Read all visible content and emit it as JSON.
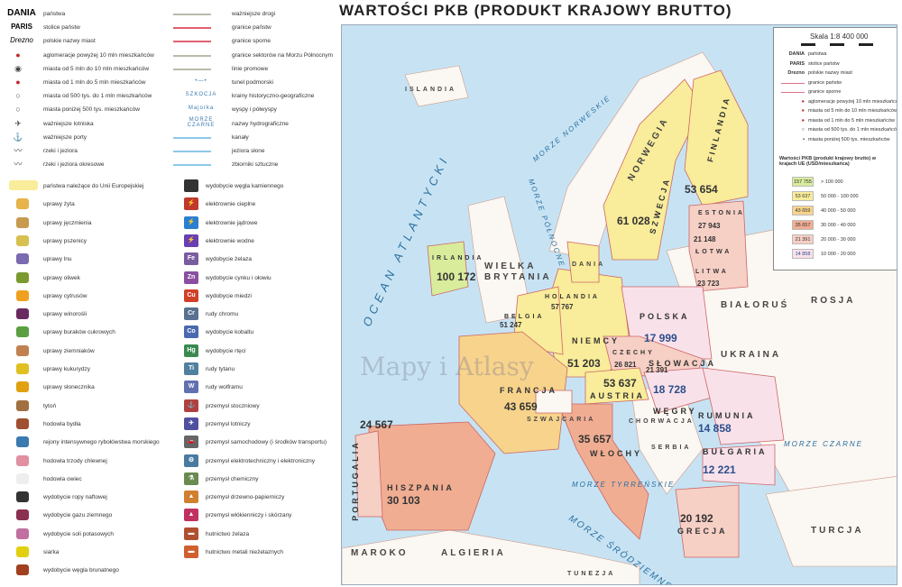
{
  "legend_top_left": [
    {
      "sym": "DANIA",
      "label": "państwa"
    },
    {
      "sym": "PARIS",
      "label": "stolice państw"
    },
    {
      "sym": "Drezno",
      "label": "polskie nazwy miast"
    },
    {
      "sym": "●",
      "label": "aglomeracje powyżej 10 mln mieszkańców"
    },
    {
      "sym": "◉",
      "label": "miasta od 5 mln do 10 mln mieszkańców"
    },
    {
      "sym": "●",
      "label": "miasta od 1 mln do 5 mln mieszkańców"
    },
    {
      "sym": "○",
      "label": "miasta od 500 tys. do 1 mln mieszkańców"
    },
    {
      "sym": "○",
      "label": "miasta poniżej 500 tys. mieszkańców"
    },
    {
      "sym": "✈",
      "label": "ważniejsze lotniska"
    },
    {
      "sym": "⚓",
      "label": "ważniejsze porty"
    },
    {
      "sym": "〰",
      "label": "rzeki i jeziora"
    },
    {
      "sym": "〰",
      "label": "rzeki i jeziora okresowe"
    }
  ],
  "legend_top_right": [
    {
      "sym": "",
      "label": "ważniejsze drogi"
    },
    {
      "sym": "",
      "label": "granice państw"
    },
    {
      "sym": "",
      "label": "granice sporne"
    },
    {
      "sym": "",
      "label": "granice sektorów na Morzu Północnym"
    },
    {
      "sym": "",
      "label": "linie promowe"
    },
    {
      "sym": "•—•",
      "label": "tunel podmorski"
    },
    {
      "sym": "SZKOCJA",
      "label": "krainy historyczno-geograficzne"
    },
    {
      "sym": "Majorka",
      "label": "wyspy i półwyspy"
    },
    {
      "sym": "MORZE CZARNE",
      "label": "nazwy hydrograficzne"
    },
    {
      "sym": "",
      "label": "kanały"
    },
    {
      "sym": "",
      "label": "jeziora słone"
    },
    {
      "sym": "",
      "label": "zbiorniki sztuczne"
    }
  ],
  "legend_econ_left": [
    "państwa należące do Unii Europejskiej",
    "uprawy żyta",
    "uprawy jęczmienia",
    "uprawy pszenicy",
    "uprawy lnu",
    "uprawy oliwek",
    "uprawy cytrusów",
    "uprawy winorośli",
    "uprawy buraków cukrowych",
    "uprawy ziemniaków",
    "uprawy kukurydzy",
    "uprawy słonecznika",
    "tytoń",
    "hodowla bydła",
    "rejony intensywnego rybołówstwa morskiego",
    "hodowla trzody chlewnej",
    "hodowla owiec",
    "wydobycie ropy naftowej",
    "wydobycie gazu ziemnego",
    "wydobycie soli potasowych",
    "siarka",
    "wydobycie węgla brunatnego"
  ],
  "legend_econ_right": [
    {
      "code": "",
      "color": "#333",
      "label": "wydobycie węgla kamiennego"
    },
    {
      "code": "⚡",
      "color": "#c0392b",
      "label": "elektrownie cieplne"
    },
    {
      "code": "⚡",
      "color": "#2a7fd0",
      "label": "elektrownie jądrowe"
    },
    {
      "code": "⚡",
      "color": "#6a3fb0",
      "label": "elektrownie wodne"
    },
    {
      "code": "Fe",
      "color": "#7a5ca0",
      "label": "wydobycie żelaza"
    },
    {
      "code": "Zn Pb",
      "color": "#8a4fa0",
      "label": "wydobycie cynku i ołowiu"
    },
    {
      "code": "Cu",
      "color": "#d0402a",
      "label": "wydobycie miedzi"
    },
    {
      "code": "Cr",
      "color": "#5a7090",
      "label": "rudy chromu"
    },
    {
      "code": "Co",
      "color": "#4a6ab0",
      "label": "wydobycie kobaltu"
    },
    {
      "code": "Hg",
      "color": "#3a8a50",
      "label": "wydobycie rtęci"
    },
    {
      "code": "Ti",
      "color": "#5080a0",
      "label": "rudy tytanu"
    },
    {
      "code": "W",
      "color": "#6070b0",
      "label": "rudy wolframu"
    },
    {
      "code": "⚓",
      "color": "#b04040",
      "label": "przemysł stoczniowy"
    },
    {
      "code": "✈",
      "color": "#5050a0",
      "label": "przemysł lotniczy"
    },
    {
      "code": "🚗",
      "color": "#666",
      "label": "przemysł samochodowy (i środków transportu)"
    },
    {
      "code": "⚙",
      "color": "#4a7aa0",
      "label": "przemysł elektrotechniczny i elektroniczny"
    },
    {
      "code": "⚗",
      "color": "#6a8a50",
      "label": "przemysł chemiczny"
    },
    {
      "code": "▲",
      "color": "#d08030",
      "label": "przemysł drzewno-papierniczy"
    },
    {
      "code": "▲",
      "color": "#c03060",
      "label": "przemysł włókienniczy i skórzany"
    },
    {
      "code": "▬",
      "color": "#b05030",
      "label": "hutnictwo żelaza"
    },
    {
      "code": "▬",
      "color": "#d06030",
      "label": "hutnictwo metali nieżelaznych"
    }
  ],
  "map": {
    "title": "WARTOŚCI PKB (PRODUKT KRAJOWY BRUTTO)",
    "watermark": "Mapy i Atlasy",
    "scale": "Skala 1:8 400 000",
    "legend": [
      {
        "sym": "DANIA",
        "label": "państwa"
      },
      {
        "sym": "PARIS",
        "label": "stolice państw"
      },
      {
        "sym": "Drezno",
        "label": "polskie nazwy miast"
      },
      {
        "sym": "",
        "label": "granice państw"
      },
      {
        "sym": "",
        "label": "granice sporne"
      },
      {
        "sym": "●",
        "label": "aglomeracje powyżej 10 mln mieszkańców"
      },
      {
        "sym": "●",
        "label": "miasta od 5 mln do 10 mln mieszkańców"
      },
      {
        "sym": "●",
        "label": "miasta od 1 mln do 5 mln mieszkańców"
      },
      {
        "sym": "○",
        "label": "miasta od 500 tys. do 1 mln mieszkańców"
      },
      {
        "sym": "•",
        "label": "miasta poniżej 500 tys. mieszkańców"
      }
    ],
    "gdp_legend_title": "Wartości PKB (produkt krajowy brutto) w krajach UE (USD/mieszkańca)",
    "gdp_classes": [
      {
        "sample": "157 755",
        "range": "> 100 000",
        "color": "#d8ec9c"
      },
      {
        "sample": "53 637",
        "range": "50 000 - 100 000",
        "color": "#f9ec9a"
      },
      {
        "sample": "43 659",
        "range": "40 000 - 50 000",
        "color": "#f7d38c"
      },
      {
        "sample": "35 657",
        "range": "30 000 - 40 000",
        "color": "#f0ad92"
      },
      {
        "sample": "21 391",
        "range": "20 000 - 30 000",
        "color": "#f6cfc5"
      },
      {
        "sample": "14 858",
        "range": "10 000 - 20 000",
        "color": "#f9e1ea"
      }
    ],
    "countries": [
      {
        "name": "IRLANDIA",
        "value": "100 172"
      },
      {
        "name": "SZWECJA",
        "value": "61 028"
      },
      {
        "name": "FINLANDIA",
        "value": "53 654"
      },
      {
        "name": "ESTONIA",
        "value": "27 943"
      },
      {
        "name": "ŁOTWA",
        "value": "21 148"
      },
      {
        "name": "LITWA",
        "value": "23 723"
      },
      {
        "name": "HOLANDIA",
        "value": "57 767"
      },
      {
        "name": "BELGIA",
        "value": "51 247"
      },
      {
        "name": "NIEMCY",
        "value": "51 203"
      },
      {
        "name": "POLSKA",
        "value": "17 999"
      },
      {
        "name": "CZECHY",
        "value": "26 821"
      },
      {
        "name": "SŁOWACJA",
        "value": "21 391"
      },
      {
        "name": "AUSTRIA",
        "value": "53 637"
      },
      {
        "name": "WĘGRY",
        "value": "18 728"
      },
      {
        "name": "RUMUNIA",
        "value": "14 858"
      },
      {
        "name": "BUŁGARIA",
        "value": "12 221"
      },
      {
        "name": "FRANCJA",
        "value": "43 659"
      },
      {
        "name": "HISZPANIA",
        "value": "30 103"
      },
      {
        "name": "PORTUGALIA",
        "value": "24 567"
      },
      {
        "name": "WŁOCHY",
        "value": "35 657"
      },
      {
        "name": "GRECJA",
        "value": "20 192"
      }
    ],
    "other_countries": [
      "ISLANDIA",
      "NORWEGIA",
      "WIELKA BRYTANIA",
      "DANIA",
      "SZWAJCARIA",
      "CHORWACJA",
      "SERBIA",
      "BIAŁORUŚ",
      "UKRAINA",
      "ROSJA",
      "TURCJA",
      "MAROKO",
      "ALGIERIA",
      "TUNEZJA"
    ],
    "seas": [
      "OCEAN ATLANTYCKI",
      "MORZE NORWESKIE",
      "MORZE PÓŁNOCNE",
      "MORZE CZARNE",
      "MORZE ŚRÓDZIEMNE",
      "MORZE TYRREŃSKIE"
    ]
  }
}
